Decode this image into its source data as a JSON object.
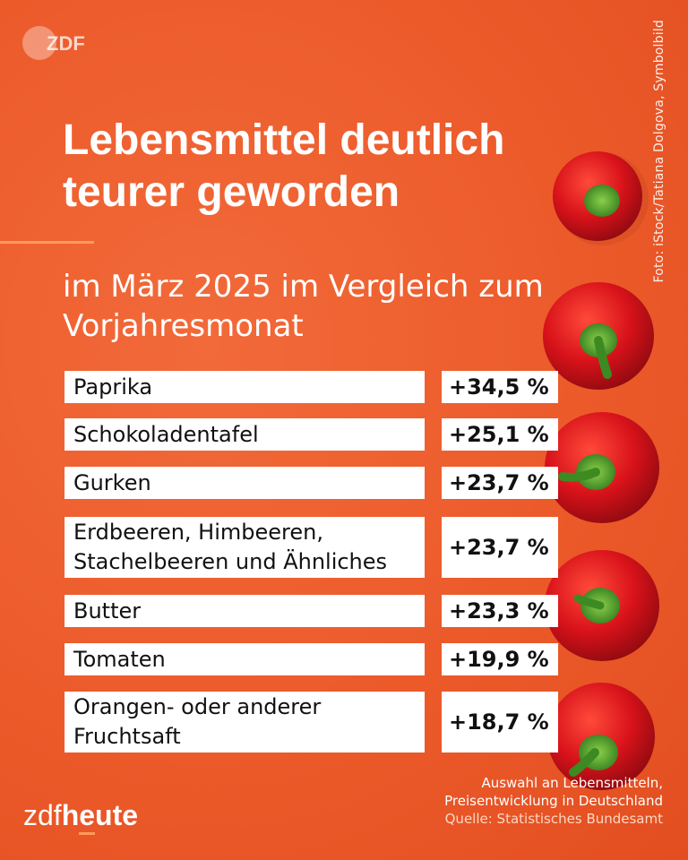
{
  "branding": {
    "top_logo": "ZDF",
    "bottom_brand_regular": "zdf",
    "bottom_brand_bold": "heute"
  },
  "photo_credit": "Foto: iStock/Tatiana Dolgova, Symbolbild",
  "chart_data": {
    "type": "table",
    "title": "Lebensmittel deutlich teurer geworden",
    "subtitle": "im März 2025 im Vergleich zum Vorjahresmonat",
    "rows": [
      {
        "label": "Paprika",
        "value": 34.5,
        "display": "+34,5 %"
      },
      {
        "label": "Schokoladentafel",
        "value": 25.1,
        "display": "+25,1 %"
      },
      {
        "label": "Gurken",
        "value": 23.7,
        "display": "+23,7 %"
      },
      {
        "label": "Erdbeeren, Himbeeren, Stachelbeeren und Ähnliches",
        "value": 23.7,
        "display": "+23,7 %"
      },
      {
        "label": "Butter",
        "value": 23.3,
        "display": "+23,3 %"
      },
      {
        "label": "Tomaten",
        "value": 19.9,
        "display": "+19,9 %"
      },
      {
        "label": "Orangen- oder anderer Fruchtsaft",
        "value": 18.7,
        "display": "+18,7 %"
      }
    ],
    "note_line1": "Auswahl an Lebensmitteln,",
    "note_line2": "Preisentwicklung in Deutschland",
    "source": "Quelle: Statistisches Bundesamt"
  }
}
